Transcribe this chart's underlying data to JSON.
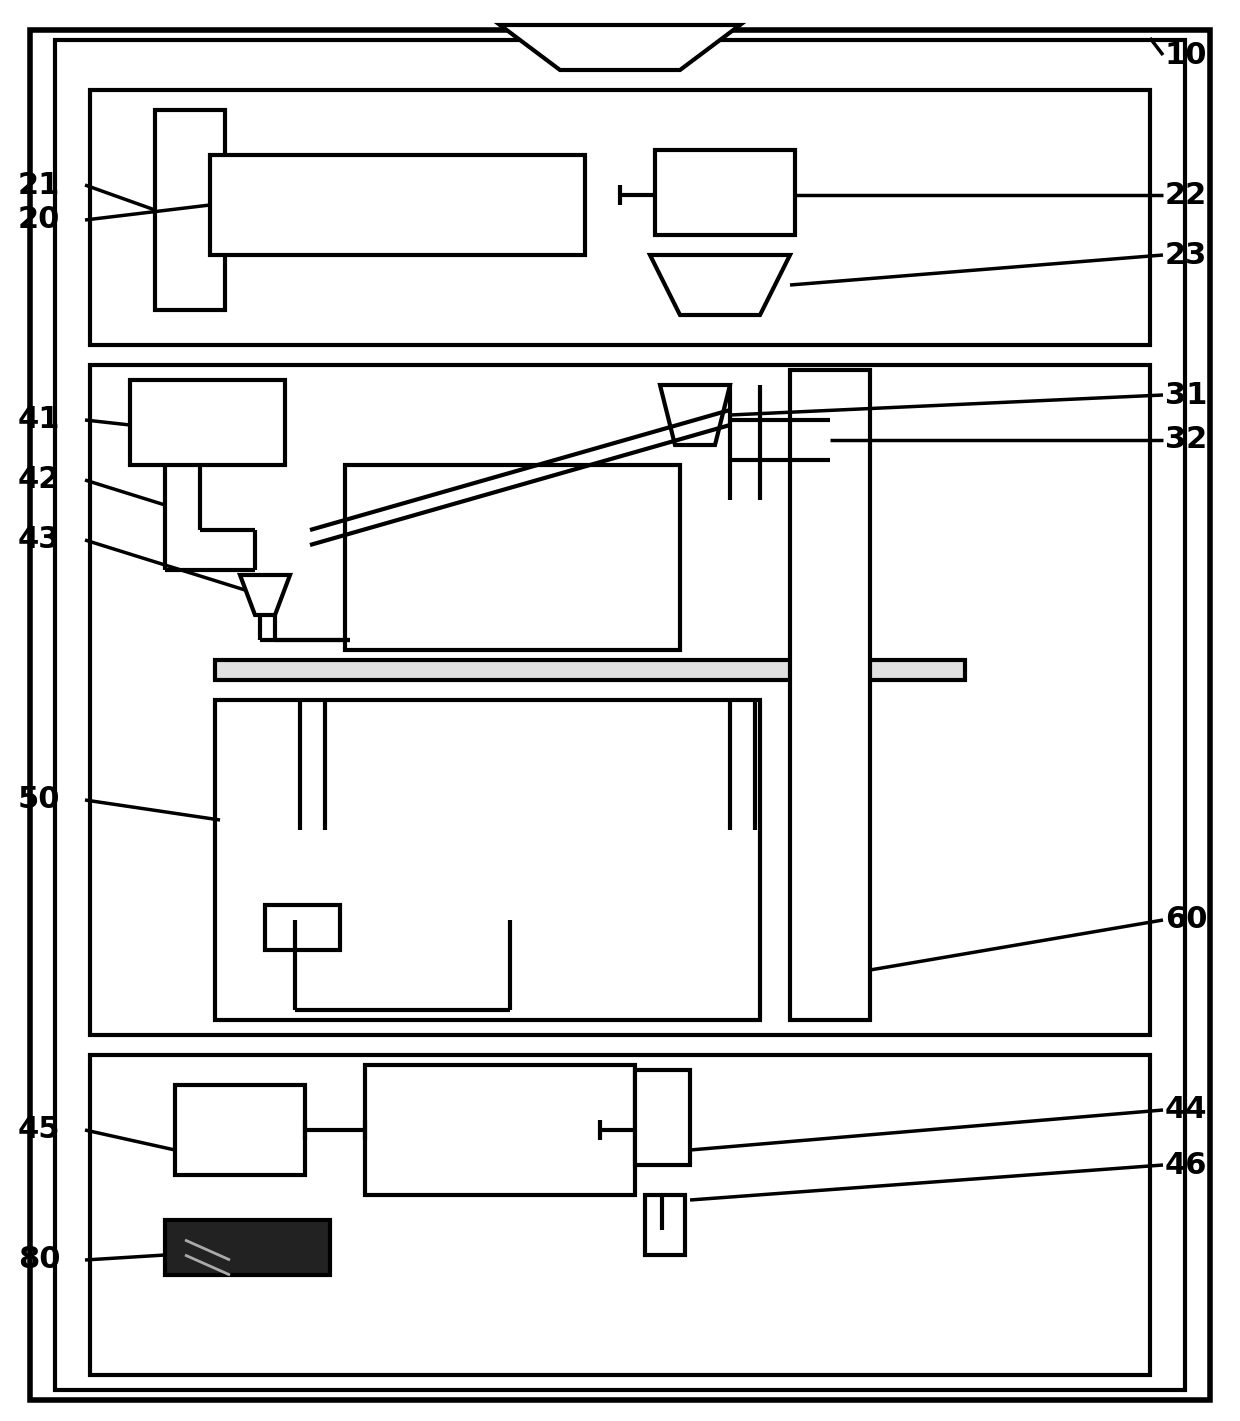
{
  "bg_color": "#ffffff",
  "lc": "#000000",
  "lw": 3.0,
  "fig_width": 12.4,
  "fig_height": 14.21
}
